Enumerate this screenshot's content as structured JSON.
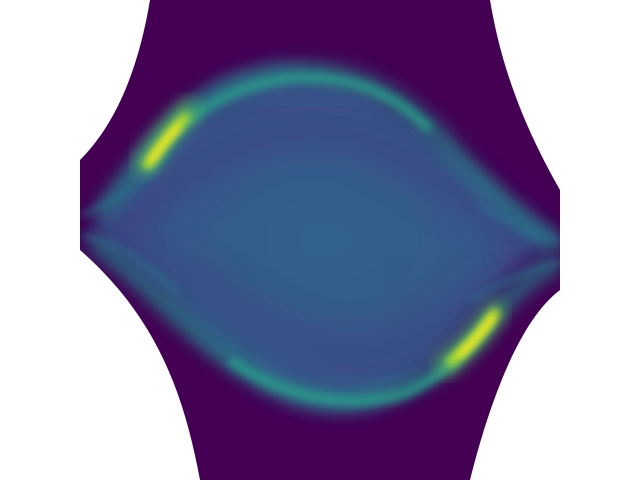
{
  "image": {
    "kind": "density-field",
    "colormap": "viridis",
    "colors": {
      "background": "#ffffff",
      "low": "#440154",
      "low_mid": "#3b528b",
      "mid": "#21918c",
      "high_mid": "#5ec962",
      "high": "#fde725"
    },
    "description_elements": [
      "outer-hexagonal-mask",
      "central-lens-shape",
      "upper-bright-arc",
      "lower-bright-arc",
      "left-hotspot",
      "right-hotspot"
    ]
  }
}
